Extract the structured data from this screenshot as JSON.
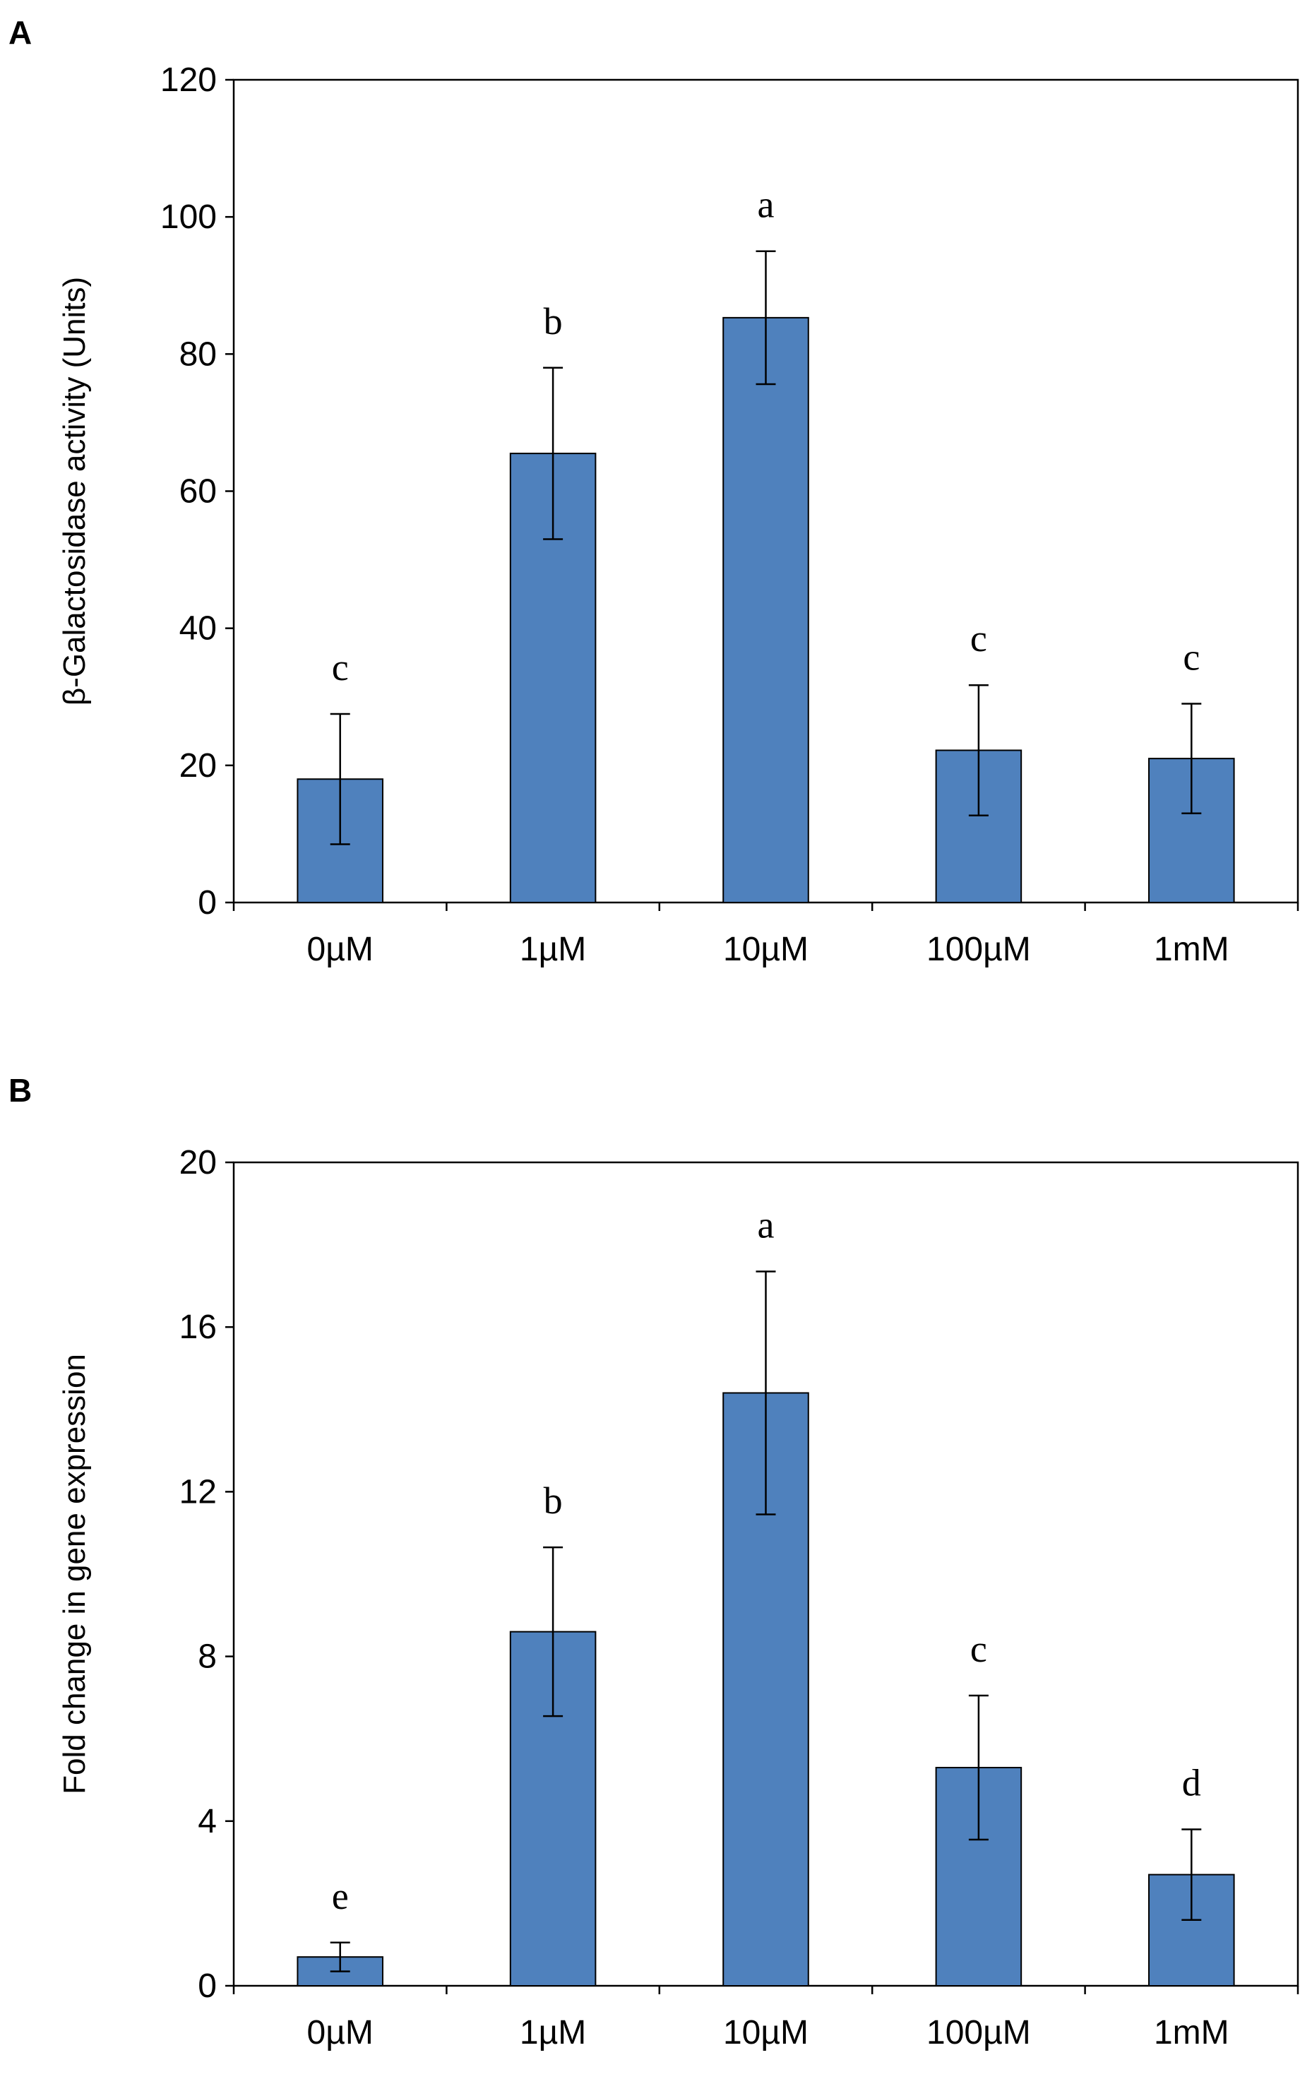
{
  "chart_data": [
    {
      "type": "bar",
      "panel": "A",
      "title": "",
      "xlabel": "",
      "ylabel": "β-Galactosidase activity (Units)",
      "categories": [
        "0µM",
        "1µM",
        "10µM",
        "100µM",
        "1mM"
      ],
      "values": [
        18,
        65.5,
        85.3,
        22.2,
        21
      ],
      "errors": [
        9.5,
        12.5,
        9.7,
        9.5,
        8
      ],
      "significance": [
        "c",
        "b",
        "a",
        "c",
        "c"
      ],
      "ylim": [
        0,
        120
      ],
      "yticks": [
        0,
        20,
        40,
        60,
        80,
        100,
        120
      ],
      "grid": false,
      "bar_color": "#4F81BD"
    },
    {
      "type": "bar",
      "panel": "B",
      "title": "",
      "xlabel": "",
      "ylabel": "Fold change in gene expression",
      "categories": [
        "0µM",
        "1µM",
        "10µM",
        "100µM",
        "1mM"
      ],
      "values": [
        0.7,
        8.6,
        14.4,
        5.3,
        2.7
      ],
      "errors": [
        0.35,
        2.05,
        2.95,
        1.75,
        1.1
      ],
      "significance": [
        "e",
        "b",
        "a",
        "c",
        "d"
      ],
      "ylim": [
        0,
        20
      ],
      "yticks": [
        0,
        4,
        8,
        12,
        16,
        20
      ],
      "grid": false,
      "bar_color": "#4F81BD"
    }
  ]
}
